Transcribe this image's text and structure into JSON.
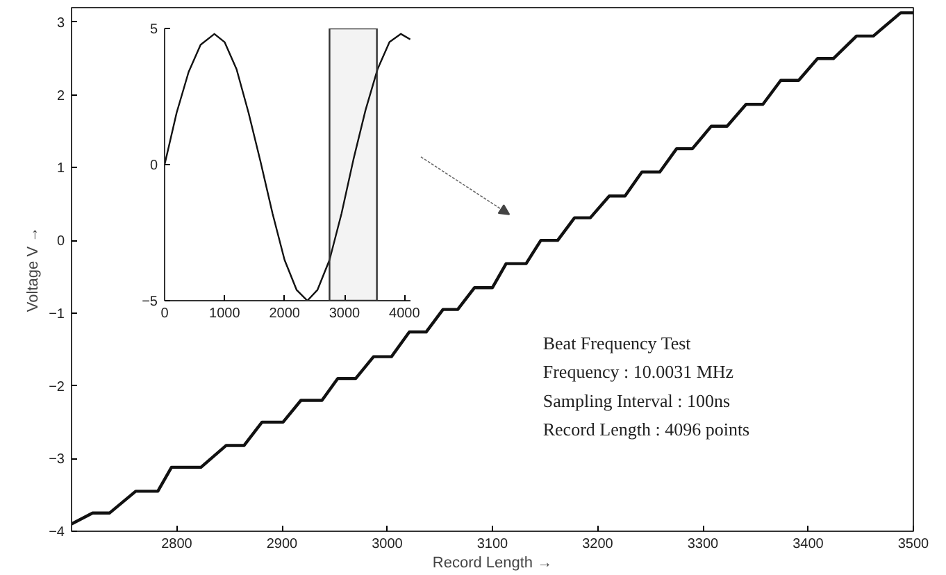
{
  "chart_data": [
    {
      "type": "line",
      "xlabel": "Record Length →",
      "ylabel": "Voltage V →",
      "x": [
        2700,
        2720,
        2736,
        2761,
        2782,
        2795,
        2823,
        2847,
        2864,
        2881,
        2901,
        2918,
        2938,
        2953,
        2970,
        2987,
        3004,
        3021,
        3037,
        3053,
        3067,
        3083,
        3100,
        3113,
        3132,
        3146,
        3162,
        3178,
        3193,
        3211,
        3226,
        3242,
        3259,
        3275,
        3290,
        3308,
        3323,
        3341,
        3357,
        3374,
        3391,
        3409,
        3424,
        3446,
        3462,
        3488,
        3500
      ],
      "series": [
        {
          "color": "#111111",
          "values": [
            -3.9,
            -3.75,
            -3.75,
            -3.45,
            -3.45,
            -3.12,
            -3.12,
            -2.82,
            -2.82,
            -2.5,
            -2.5,
            -2.2,
            -2.2,
            -1.9,
            -1.9,
            -1.6,
            -1.6,
            -1.26,
            -1.26,
            -0.95,
            -0.95,
            -0.65,
            -0.65,
            -0.32,
            -0.32,
            0.0,
            0.0,
            0.31,
            0.31,
            0.61,
            0.61,
            0.94,
            0.94,
            1.26,
            1.26,
            1.57,
            1.57,
            1.87,
            1.87,
            2.2,
            2.2,
            2.5,
            2.5,
            2.81,
            2.81,
            3.13,
            3.13
          ]
        }
      ],
      "xlim": [
        2700,
        3500
      ],
      "ylim": [
        -4,
        3.2
      ],
      "xticks": [
        2800,
        2900,
        3000,
        3100,
        3200,
        3300,
        3400,
        3500
      ],
      "yticks": [
        -4,
        -3,
        -2,
        -1,
        0,
        1,
        2,
        3
      ],
      "grid": false,
      "annotations": [
        "Beat Frequency Test",
        "Frequency : 10.0031 MHz",
        "Sampling Interval : 100ns",
        "Record Length : 4096 points"
      ]
    },
    {
      "type": "line",
      "x": [
        0,
        200,
        400,
        600,
        830,
        1000,
        1200,
        1400,
        1600,
        1800,
        2000,
        2200,
        2380,
        2550,
        2750,
        2950,
        3150,
        3350,
        3550,
        3750,
        3940,
        4096
      ],
      "series": [
        {
          "color": "#111111",
          "values": [
            0,
            1.9,
            3.4,
            4.4,
            4.8,
            4.5,
            3.5,
            1.9,
            0.1,
            -1.8,
            -3.5,
            -4.6,
            -5.0,
            -4.6,
            -3.5,
            -1.8,
            0.2,
            2.0,
            3.5,
            4.5,
            4.8,
            4.6
          ]
        }
      ],
      "xlim": [
        0,
        4100
      ],
      "ylim": [
        -5,
        5
      ],
      "xticks": [
        0,
        1000,
        2000,
        3000,
        4000
      ],
      "yticks": [
        -5,
        0,
        5
      ],
      "grid": false,
      "bands": [
        {
          "axis": "x",
          "from": 2750,
          "to": 3540,
          "color": "#333333"
        }
      ]
    }
  ]
}
